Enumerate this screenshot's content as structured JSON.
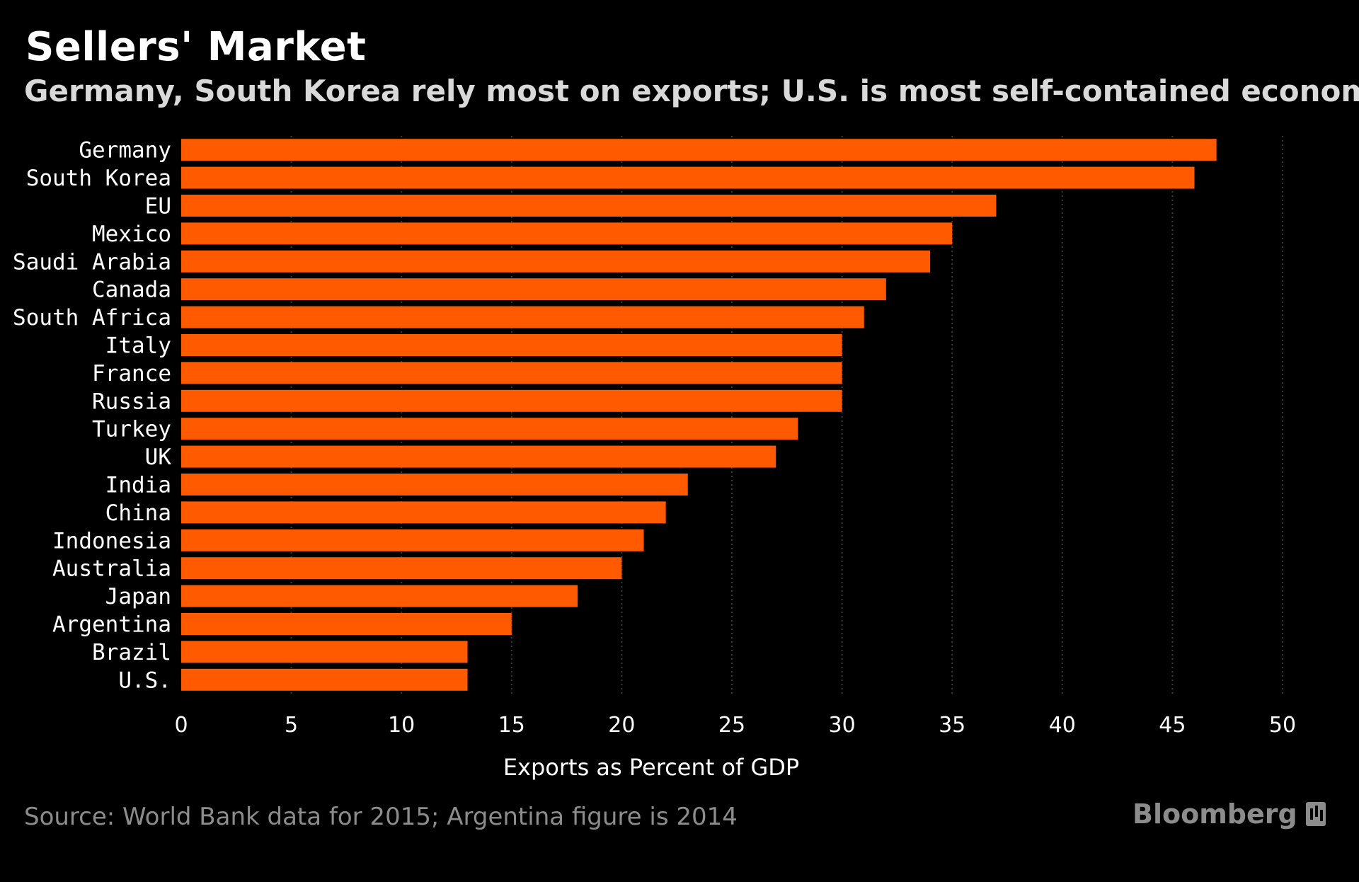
{
  "chart_data": {
    "type": "bar",
    "orientation": "horizontal",
    "title": "Sellers' Market",
    "subtitle": "Germany, South Korea rely most on exports; U.S. is most self-contained economy",
    "xlabel": "Exports as Percent of GDP",
    "ylabel": "",
    "categories": [
      "Germany",
      "South Korea",
      "EU",
      "Mexico",
      "Saudi Arabia",
      "Canada",
      "South Africa",
      "Italy",
      "France",
      "Russia",
      "Turkey",
      "UK",
      "India",
      "China",
      "Indonesia",
      "Australia",
      "Japan",
      "Argentina",
      "Brazil",
      "U.S."
    ],
    "values": [
      47,
      46,
      37,
      35,
      34,
      32,
      31,
      30,
      30,
      30,
      28,
      27,
      23,
      22,
      21,
      20,
      18,
      15,
      13,
      13
    ],
    "xlim": [
      0,
      50
    ],
    "xticks": [
      0,
      5,
      10,
      15,
      20,
      25,
      30,
      35,
      40,
      45,
      50
    ],
    "grid": "vertical dotted",
    "legend": "none",
    "colors": {
      "background": "#000000",
      "bar": "#ff5a00",
      "text": "#ffffff",
      "subtitle": "#d9d9d9",
      "muted": "#8c8c8c",
      "grid": "#3a3a3a"
    }
  },
  "source": "Source: World Bank data for 2015; Argentina figure is 2014",
  "logo": {
    "text": "Bloomberg",
    "icon": "bloomberg-logo-icon"
  }
}
